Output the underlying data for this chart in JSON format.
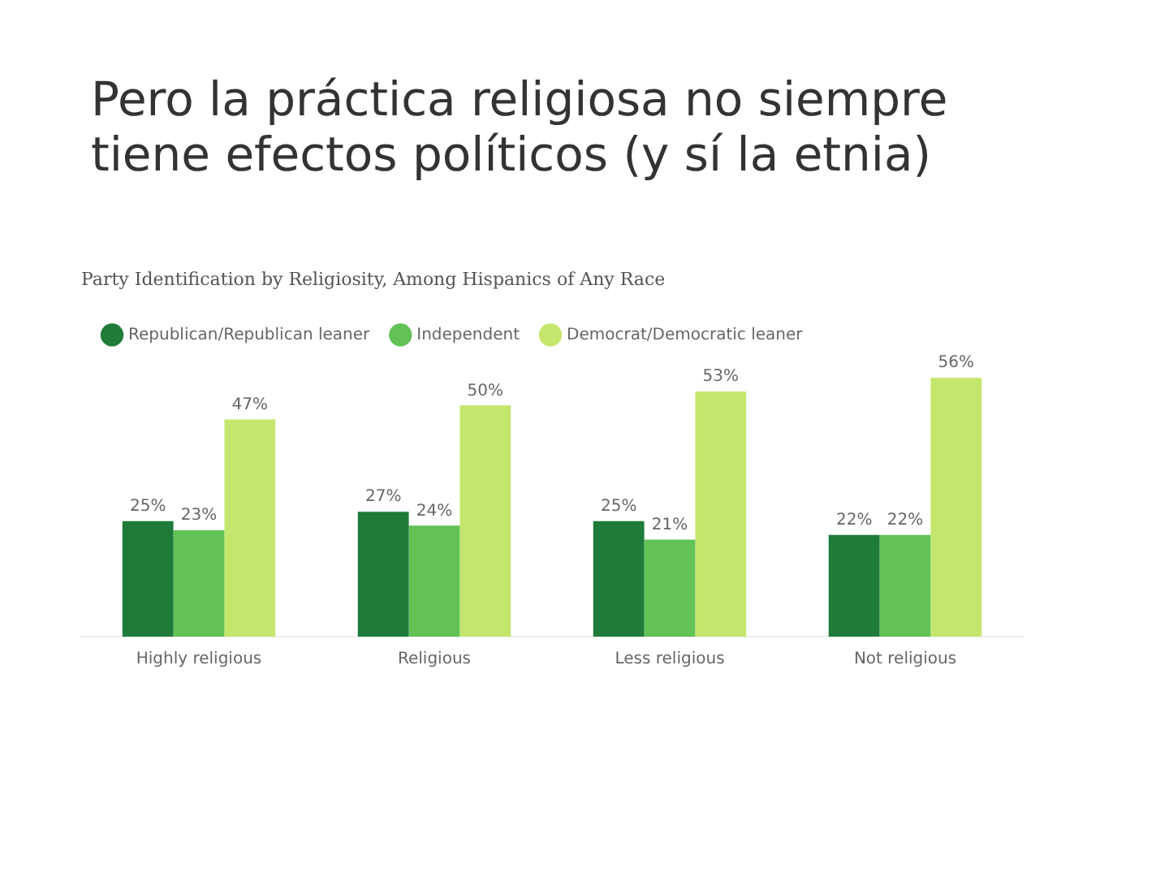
{
  "chart_data": {
    "type": "bar",
    "title": "Pero la práctica religiosa no siempre tiene efectos políticos (y sí la etnia)",
    "subtitle": "Party Identification by Religiosity, Among Hispanics of Any Race",
    "categories": [
      "Highly religious",
      "Religious",
      "Less religious",
      "Not religious"
    ],
    "series": [
      {
        "name": "Republican/Republican leaner",
        "color": "#1e7b3a",
        "values": [
          25,
          27,
          25,
          22
        ],
        "value_labels": [
          "25%",
          "27%",
          "25%",
          "22%"
        ]
      },
      {
        "name": "Independent",
        "color": "#62c256",
        "values": [
          23,
          24,
          21,
          22
        ],
        "value_labels": [
          "23%",
          "24%",
          "21%",
          "22%"
        ]
      },
      {
        "name": "Democrat/Democratic leaner",
        "color": "#c5e66c",
        "values": [
          47,
          50,
          53,
          56
        ],
        "value_labels": [
          "47%",
          "50%",
          "53%",
          "56%"
        ]
      }
    ],
    "grid": false,
    "legend": "top left",
    "data_labels": true
  }
}
